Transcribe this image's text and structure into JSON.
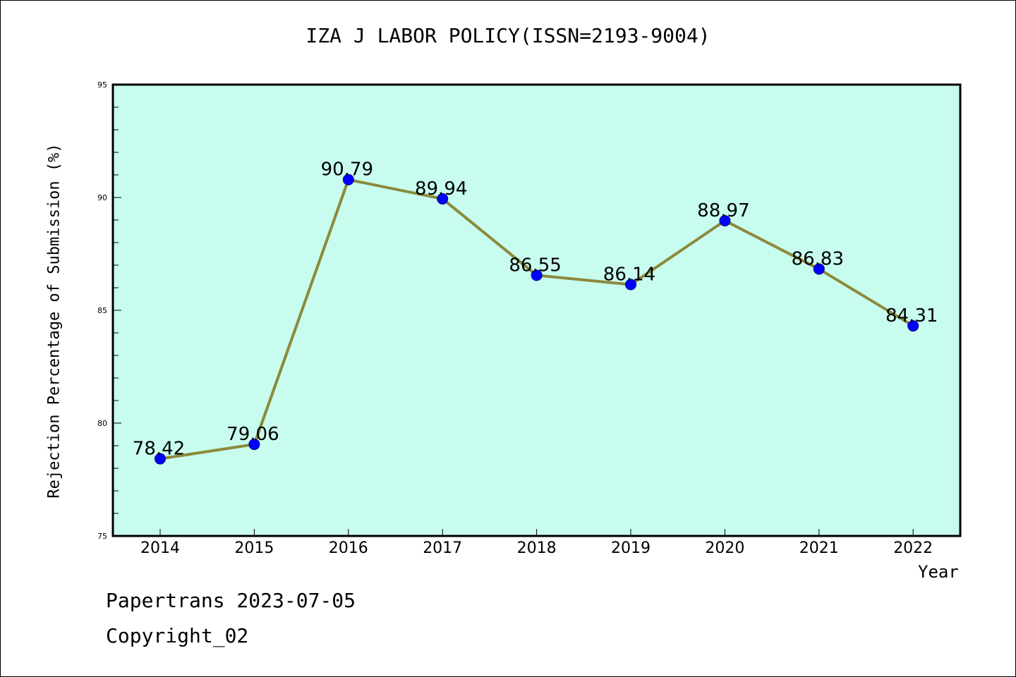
{
  "chart_data": {
    "type": "line",
    "title": "IZA J LABOR POLICY(ISSN=2193-9004)",
    "xlabel": "Year",
    "ylabel": "Rejection Percentage of Submission (%)",
    "categories": [
      "2014",
      "2015",
      "2016",
      "2017",
      "2018",
      "2019",
      "2020",
      "2021",
      "2022"
    ],
    "values": [
      78.42,
      79.06,
      90.79,
      89.94,
      86.55,
      86.14,
      88.97,
      86.83,
      84.31
    ],
    "data_labels": [
      "78.42",
      "79.06",
      "90.79",
      "89.94",
      "86.55",
      "86.14",
      "88.97",
      "86.83",
      "84.31"
    ],
    "ylim": [
      75,
      95
    ],
    "yticks": [
      "75",
      "80",
      "85",
      "90",
      "95"
    ],
    "y_minor_step": 1,
    "grid": false,
    "legend": "none",
    "colors": {
      "plot_background": "#c8fcee",
      "line": "#8b8a3a",
      "marker": "#0000ff"
    }
  },
  "footer": {
    "line1": "Papertrans 2023-07-05",
    "line2": "Copyright_02"
  }
}
